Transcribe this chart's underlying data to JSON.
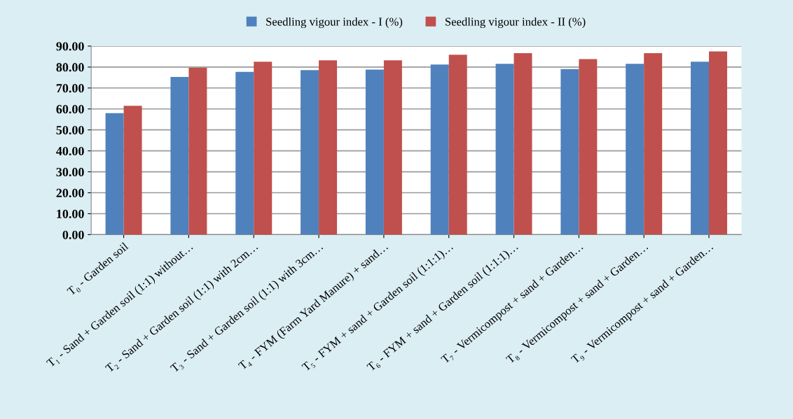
{
  "chart_data": {
    "type": "bar",
    "categories": [
      "T₀ - Garden soil",
      "T₁ - Sand + Garden soil (1:1) without…",
      "T₂ - Sand + Garden soil (1:1) with 2cm…",
      "T₃ - Sand + Garden soil (1:1) with 3cm…",
      "T₄ - FYM (Farm Yard Manure) + sand…",
      "T₅ - FYM + sand + Garden soil (1:1:1)…",
      "T₆ - FYM + sand + Garden soil (1:1:1)…",
      "T₇ - Vermicompost + sand + Garden…",
      "T₈ - Vermicompost + sand + Garden…",
      "T₉ - Vermicompost + sand + Garden…"
    ],
    "series": [
      {
        "name": "Seedling vigour index - I (%)",
        "color": "#4f81bd",
        "values": [
          58.0,
          75.3,
          77.7,
          78.5,
          78.8,
          81.2,
          81.5,
          79.0,
          81.5,
          82.5
        ]
      },
      {
        "name": "Seedling vigour index - II (%)",
        "color": "#c0504d",
        "values": [
          61.5,
          79.7,
          82.5,
          83.2,
          83.2,
          85.9,
          86.6,
          83.8,
          86.6,
          87.5
        ]
      }
    ],
    "ylim": [
      0,
      90
    ],
    "yticks": [
      {
        "value": 0,
        "label": "0.00"
      },
      {
        "value": 10,
        "label": "10.00"
      },
      {
        "value": 20,
        "label": "20.00"
      },
      {
        "value": 30,
        "label": "30.00"
      },
      {
        "value": 40,
        "label": "40.00"
      },
      {
        "value": 50,
        "label": "50.00"
      },
      {
        "value": 60,
        "label": "60.00"
      },
      {
        "value": 70,
        "label": "70.00"
      },
      {
        "value": 80,
        "label": "80.00"
      },
      {
        "value": 90,
        "label": "90.00"
      }
    ],
    "grid": "y",
    "legend": "top"
  }
}
